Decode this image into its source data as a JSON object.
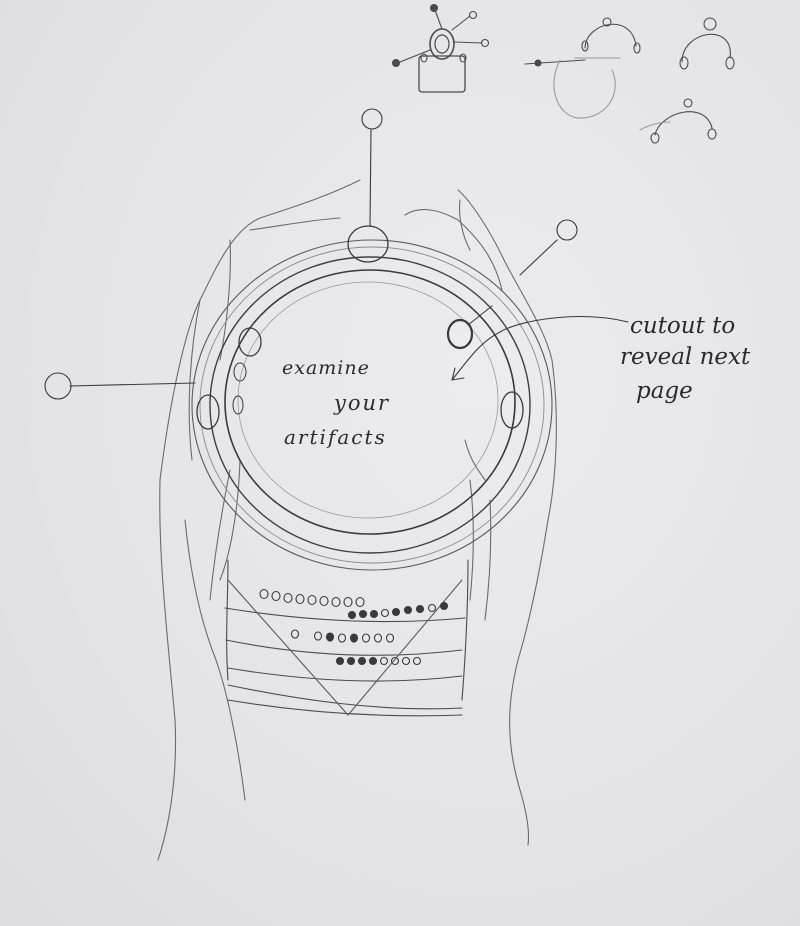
{
  "sketch": {
    "center_text": {
      "line1": "examine",
      "line2": "your",
      "line3": "artifacts"
    },
    "annotation": {
      "line1": "cutout to",
      "line2": "reveal next",
      "line3": "page"
    }
  },
  "colors": {
    "paper": "#e6e6e8",
    "pencil": "#3a3a3e",
    "pencil_light": "#8a8a90"
  }
}
